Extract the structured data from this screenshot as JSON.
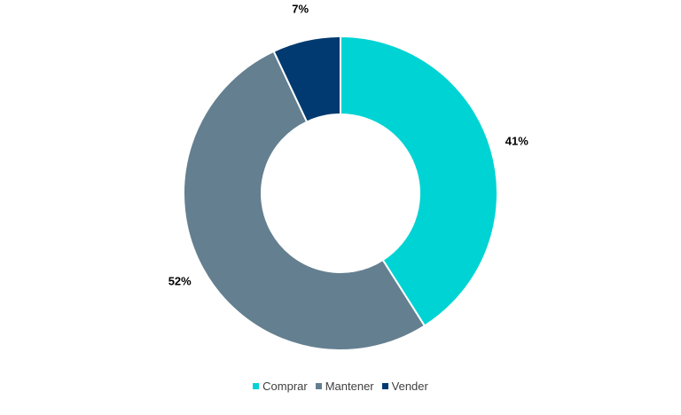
{
  "chart_data": {
    "type": "pie",
    "donut": true,
    "series": [
      {
        "name": "Comprar",
        "value": 41,
        "label": "41%",
        "color": "#00D3D3"
      },
      {
        "name": "Mantener",
        "value": 52,
        "label": "52%",
        "color": "#647F90"
      },
      {
        "name": "Vender",
        "value": 7,
        "label": "7%",
        "color": "#003A70"
      }
    ],
    "legend_position": "bottom-center",
    "start_angle_deg": 0,
    "direction": "clockwise"
  }
}
